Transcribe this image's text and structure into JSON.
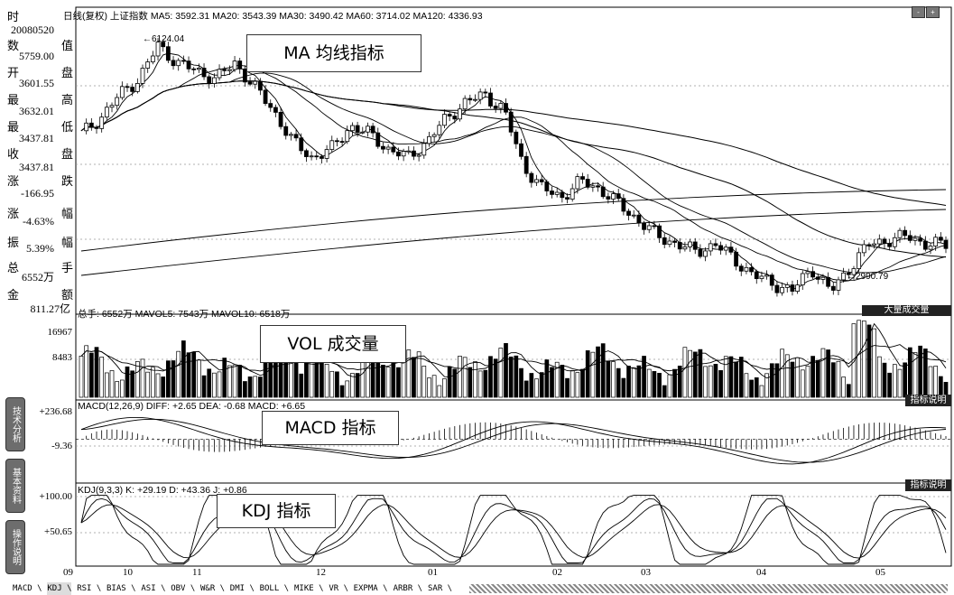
{
  "main": {
    "header": "日线(复权)  上证指数 MA5: 3592.31 MA20: 3543.39 MA30: 3490.42 MA60: 3714.02 MA120: 4336.93",
    "annotation": "MA 均线指标",
    "high_marker": "6124.04",
    "low_marker": "2990.79"
  },
  "left_panel": {
    "labels": [
      "时",
      "数",
      "开",
      "最",
      "最",
      "收",
      "涨",
      "涨",
      "振",
      "总",
      "金"
    ],
    "values": [
      "20080520",
      "5759.00",
      "3601.55",
      "3632.01",
      "3437.81",
      "3437.81",
      "-166.95",
      "-4.63%",
      "5.39%",
      "6552万",
      "811.27亿"
    ],
    "values_cn": [
      "值",
      "盘",
      "高",
      "低",
      "盘",
      "跌",
      "幅",
      "幅",
      "手",
      "额"
    ]
  },
  "vol": {
    "header": "总手: 6552万  MAVOL5: 7543万  MAVOL10: 6518万",
    "button": "大量成交量",
    "annotation": "VOL 成交量",
    "yticks": [
      "16967",
      "8483"
    ]
  },
  "macd": {
    "header": "MACD(12,26,9) DIFF: +2.65 DEA: -0.68 MACD: +6.65",
    "button": "指标说明",
    "annotation": "MACD 指标",
    "yticks": [
      "+236.68",
      "-9.36"
    ]
  },
  "kdj": {
    "header": "KDJ(9,3,3) K: +29.19 D: +43.36 J: +0.86",
    "button": "指标说明",
    "annotation": "KDJ 指标",
    "yticks": [
      "+100.00",
      "+50.65"
    ]
  },
  "side_tabs": [
    "技术分析",
    "基本资料",
    "操作说明"
  ],
  "x_ticks": [
    "09",
    "10",
    "11",
    "12",
    "01",
    "02",
    "03",
    "04",
    "05"
  ],
  "bottom_tabs": [
    "MACD",
    "KDJ",
    "RSI",
    "BIAS",
    "ASI",
    "OBV",
    "W&R",
    "DMI",
    "BOLL",
    "MIKE",
    "VR",
    "EXPMA",
    "ARBR",
    "SAR"
  ],
  "window_buttons": [
    "-",
    "+"
  ],
  "chart_data": [
    {
      "type": "candlestick",
      "title": "上证指数 日线(复权)",
      "x_range": [
        "2007-09",
        "2008-05"
      ],
      "ylim": [
        2800,
        6300
      ],
      "annotations": [
        {
          "label": "6124.04",
          "type": "high"
        },
        {
          "label": "2990.79",
          "type": "low"
        }
      ],
      "series": [
        {
          "name": "MA5",
          "last": 3592.31
        },
        {
          "name": "MA20",
          "last": 3543.39
        },
        {
          "name": "MA30",
          "last": 3490.42
        },
        {
          "name": "MA60",
          "last": 3714.02
        },
        {
          "name": "MA120",
          "last": 4336.93
        }
      ],
      "close_path": [
        5000,
        5200,
        5500,
        5700,
        6124,
        5900,
        5800,
        5700,
        5900,
        5600,
        5300,
        4900,
        4700,
        4800,
        5100,
        5000,
        4800,
        4700,
        4900,
        5200,
        5400,
        5500,
        5300,
        4600,
        4300,
        4200,
        4400,
        4300,
        4100,
        3900,
        3700,
        3600,
        3500,
        3600,
        3400,
        3200,
        3100,
        3000,
        3300,
        2990,
        3300,
        3600,
        3650,
        3700,
        3600,
        3592
      ]
    },
    {
      "type": "bar",
      "title": "VOL",
      "ylim": [
        0,
        16967
      ],
      "series": [
        {
          "name": "MAVOL5",
          "last": 7543
        },
        {
          "name": "MAVOL10",
          "last": 6518
        }
      ],
      "last": 6552
    },
    {
      "type": "line",
      "title": "MACD(12,26,9)",
      "ylim": [
        -300,
        236.68
      ],
      "series": [
        {
          "name": "DIFF",
          "last": 2.65
        },
        {
          "name": "DEA",
          "last": -0.68
        },
        {
          "name": "MACD",
          "last": 6.65
        }
      ]
    },
    {
      "type": "line",
      "title": "KDJ(9,3,3)",
      "ylim": [
        0,
        110
      ],
      "series": [
        {
          "name": "K",
          "last": 29.19
        },
        {
          "name": "D",
          "last": 43.36
        },
        {
          "name": "J",
          "last": 0.86
        }
      ]
    }
  ]
}
